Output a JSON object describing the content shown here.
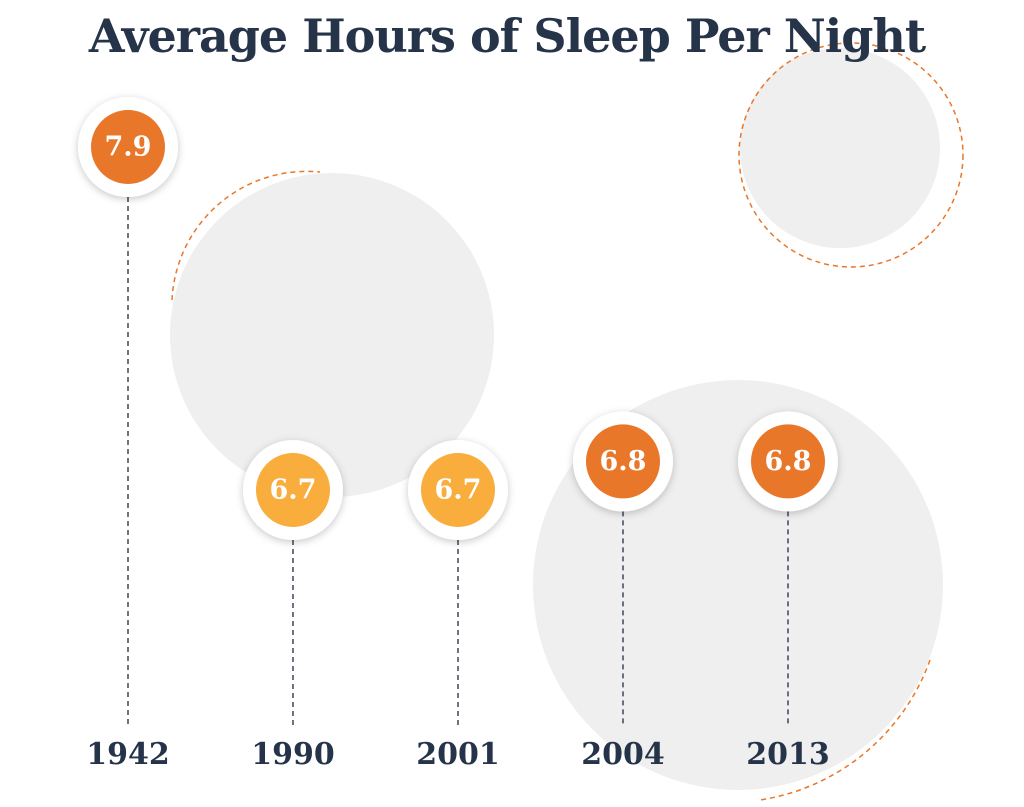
{
  "chart_data": {
    "type": "lollipop",
    "title": "Average Hours of Sleep Per Night",
    "categories": [
      "1942",
      "1990",
      "2001",
      "2004",
      "2013"
    ],
    "values": [
      7.9,
      6.7,
      6.7,
      6.8,
      6.8
    ],
    "colors": [
      "#e8772a",
      "#f8ad3c",
      "#f8ad3c",
      "#e8772a",
      "#e8772a"
    ]
  }
}
